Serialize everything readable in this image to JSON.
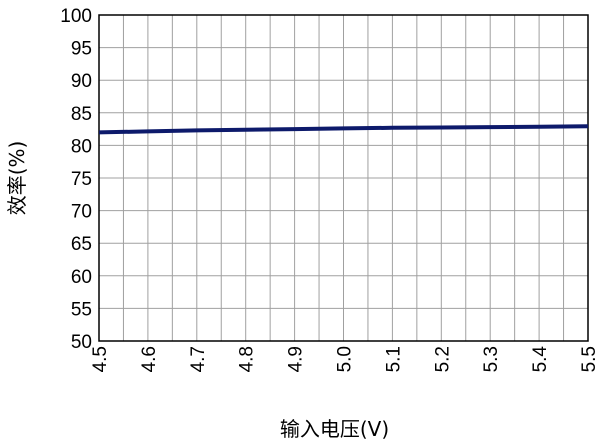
{
  "chart_data": {
    "type": "line",
    "title": "",
    "xlabel": "输入电压(V)",
    "ylabel": "效率(%)",
    "xlim": [
      4.5,
      5.5
    ],
    "ylim": [
      50,
      100
    ],
    "x_ticks": [
      "4.5",
      "4.6",
      "4.7",
      "4.8",
      "4.9",
      "5.0",
      "5.1",
      "5.2",
      "5.3",
      "5.4",
      "5.5"
    ],
    "y_ticks": [
      "50",
      "55",
      "60",
      "65",
      "70",
      "75",
      "80",
      "85",
      "90",
      "95",
      "100"
    ],
    "x_minor_step": 0.05,
    "grid": true,
    "legend": "none",
    "series": [
      {
        "color": "#0d1a6b",
        "x": [
          4.5,
          4.6,
          4.7,
          4.8,
          4.9,
          5.0,
          5.1,
          5.2,
          5.3,
          5.4,
          5.5
        ],
        "y": [
          82.0,
          82.15,
          82.3,
          82.4,
          82.5,
          82.6,
          82.7,
          82.75,
          82.8,
          82.85,
          82.95
        ]
      }
    ]
  }
}
